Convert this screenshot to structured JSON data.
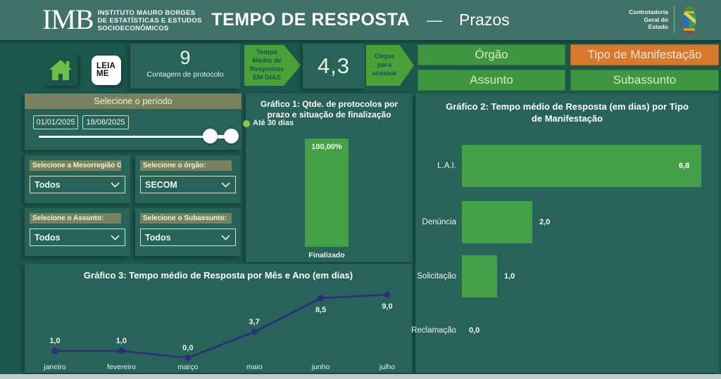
{
  "header": {
    "logo": {
      "abbr": "IMB",
      "line1": "INSTITUTO MAURO BORGES",
      "line2": "DE ESTATÍSTICAS E ESTUDOS",
      "line3": "SOCIOECONÔMICOS"
    },
    "title": "TEMPO DE RESPOSTA",
    "separator": "—",
    "subtitle": "Prazos",
    "agency": {
      "line1": "Controladoria",
      "line2": "Geral do",
      "line3": "Estado"
    }
  },
  "kpis": {
    "protocol_count": "9",
    "protocol_label": "Contagem de protocolo",
    "avg_days": "4,3",
    "arrow1_lines": [
      "Tempo",
      "Médio de",
      "Respostas",
      "EM DIAS"
    ],
    "arrow2_lines": [
      "Clique",
      "para",
      "acessar"
    ]
  },
  "leia_me": {
    "line1": "LEIA",
    "line2": "ME"
  },
  "nav_buttons": [
    {
      "label": "Órgão",
      "active": false
    },
    {
      "label": "Tipo de Manifestação",
      "active": true
    },
    {
      "label": "Assunto",
      "active": false
    },
    {
      "label": "Subassunto",
      "active": false
    }
  ],
  "filters": {
    "period": {
      "title": "Selecione o período",
      "start_date": "01/01/2025",
      "end_date": "18/08/2025"
    },
    "slicers": [
      {
        "label": "Selecione a Mesorregião G...",
        "value": "Todos"
      },
      {
        "label": "Selecione o órgão:",
        "value": "SECOM"
      },
      {
        "label": "Selecione o Assunto:",
        "value": "Todos"
      },
      {
        "label": "Selecione o Subassunto:",
        "value": "Todos"
      }
    ]
  },
  "colors": {
    "background": "#1b574c",
    "panel": "#276359",
    "header": "#41726a",
    "accent_orange": "#d8792e",
    "button_green": "#3f9641",
    "arrow_green": "#4aa135",
    "bar_green": "#43a046",
    "legend_green": "#8dc63f",
    "line_navy": "#2b2d7e",
    "olive_label": "#78825e"
  },
  "chart_data": [
    {
      "id": "grafico1",
      "type": "bar",
      "title": "Gráfico 1: Qtde. de protocolos por prazo e situação de finalização",
      "legend": [
        {
          "label": "Até 30 dias",
          "color": "#8dc63f"
        }
      ],
      "categories": [
        "Finalizado"
      ],
      "values": [
        100.0
      ],
      "value_labels": [
        "100,00%"
      ],
      "ylabel": "",
      "xlabel": "",
      "ylim": [
        0,
        100
      ],
      "bar_color": "#43a046"
    },
    {
      "id": "grafico2",
      "type": "bar-horizontal",
      "title": "Gráfico 2: Tempo médio de Resposta (em dias) por Tipo de Manifestação",
      "categories": [
        "L.A.I.",
        "Denúncia",
        "Solicitação",
        "Reclamação"
      ],
      "values": [
        6.8,
        2.0,
        1.0,
        0.0
      ],
      "value_labels": [
        "6,8",
        "2,0",
        "1,0",
        "0,0"
      ],
      "xlim": [
        0,
        7
      ],
      "bar_color": "#43a046"
    },
    {
      "id": "grafico3",
      "type": "line",
      "title": "Gráfico 3: Tempo médio de Resposta por Mês e Ano (em dias)",
      "categories": [
        "janeiro",
        "fevereiro",
        "março",
        "maio",
        "junho",
        "julho"
      ],
      "values": [
        1.0,
        1.0,
        0.0,
        3.7,
        8.5,
        9.0
      ],
      "value_labels": [
        "1,0",
        "1,0",
        "0,0",
        "3,7",
        "8,5",
        "9,0"
      ],
      "label_position": [
        "above",
        "above",
        "above",
        "above",
        "below",
        "below"
      ],
      "ylim": [
        0,
        9
      ],
      "line_color": "#2b2d7e"
    }
  ]
}
